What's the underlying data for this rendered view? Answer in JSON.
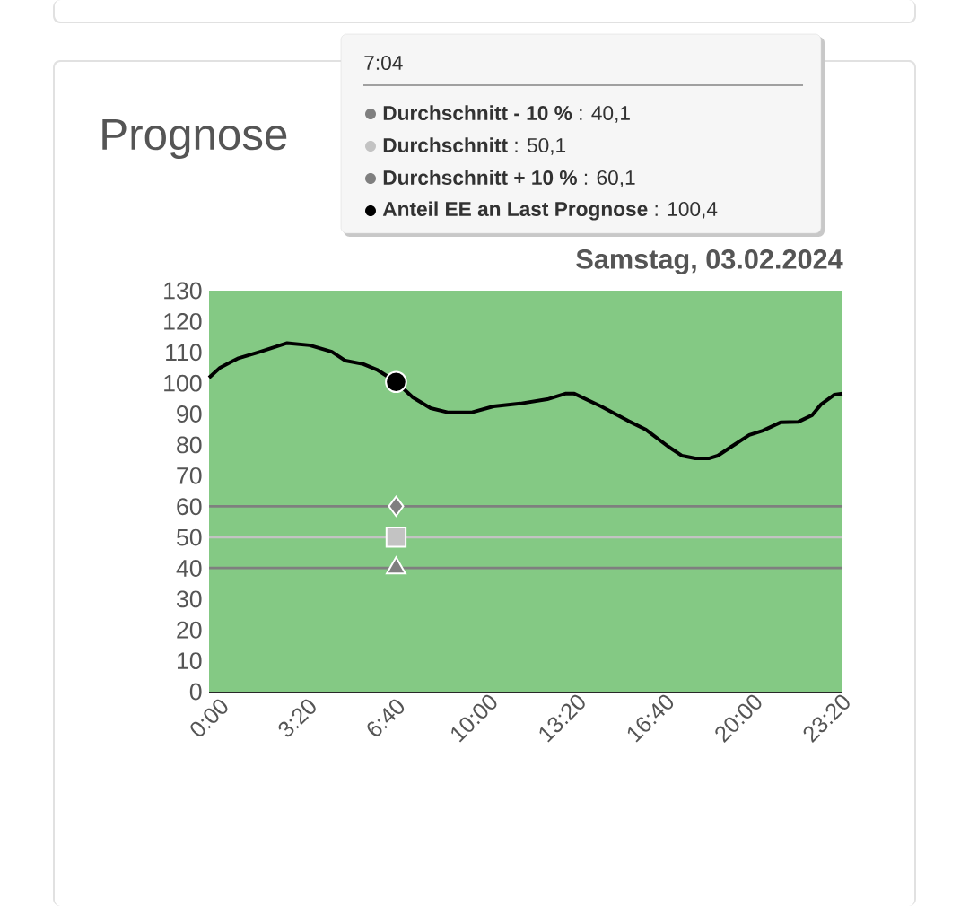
{
  "chart_data": {
    "type": "line",
    "title": "Prognose",
    "subtitle": "Samstag, 03.02.2024",
    "xlim": [
      0,
      23.933
    ],
    "ylim": [
      0,
      130
    ],
    "xticks": [
      {
        "value": 0,
        "label": "0:00"
      },
      {
        "value": 3.3333,
        "label": "3:20"
      },
      {
        "value": 6.6667,
        "label": "6:40"
      },
      {
        "value": 10,
        "label": "10:00"
      },
      {
        "value": 13.3333,
        "label": "13:20"
      },
      {
        "value": 16.6667,
        "label": "16:40"
      },
      {
        "value": 20,
        "label": "20:00"
      },
      {
        "value": 23.3333,
        "label": "23:20"
      }
    ],
    "yticks": [
      0,
      10,
      20,
      30,
      40,
      50,
      60,
      70,
      80,
      90,
      100,
      110,
      120,
      130
    ],
    "bands": [
      {
        "axis": "y",
        "from": 0,
        "to": 130,
        "color": "#84c984"
      }
    ],
    "series": [
      {
        "color": "#7f7f7f",
        "x": [
          0,
          23.933
        ],
        "values": [
          40.1,
          40.1
        ]
      },
      {
        "color": "#c3c3c3",
        "x": [
          0,
          23.933
        ],
        "values": [
          50.1,
          50.1
        ]
      },
      {
        "color": "#7f7f7f",
        "x": [
          0,
          23.933
        ],
        "values": [
          60.1,
          60.1
        ]
      },
      {
        "color": "#000000",
        "x": [
          0,
          0.41,
          1.08,
          1.93,
          2.95,
          3.8,
          4.64,
          5.15,
          5.83,
          6.34,
          7.0667,
          7.7,
          8.37,
          9.05,
          9.9,
          10.75,
          11.76,
          12.78,
          13.46,
          13.8,
          14.81,
          15.83,
          16.51,
          17.36,
          17.86,
          18.37,
          18.88,
          19.22,
          19.73,
          20.41,
          20.92,
          21.59,
          22.27,
          22.78,
          23.12,
          23.63,
          23.93
        ],
        "values": [
          101.8,
          105,
          108,
          110.2,
          113,
          112.3,
          110.2,
          107.3,
          106.2,
          104.4,
          100.4,
          95.4,
          91.9,
          90.5,
          90.5,
          92.5,
          93.4,
          94.8,
          96.6,
          96.6,
          92.5,
          87.8,
          84.9,
          79.4,
          76.5,
          75.6,
          75.6,
          76.5,
          79.4,
          83.2,
          84.6,
          87.3,
          87.5,
          89.6,
          93.1,
          96.3,
          96.6
        ]
      },
      {
        "type": "scatter",
        "marker": "triangle",
        "color": "#7f7f7f",
        "x": [
          7.0667
        ],
        "values": [
          40.1
        ]
      },
      {
        "type": "scatter",
        "marker": "square",
        "color": "#c3c3c3",
        "x": [
          7.0667
        ],
        "values": [
          50.1
        ]
      },
      {
        "type": "scatter",
        "marker": "diamond",
        "color": "#7f7f7f",
        "x": [
          7.0667
        ],
        "values": [
          60.1
        ]
      },
      {
        "type": "scatter",
        "marker": "circle",
        "color": "#000000",
        "x": [
          7.0667
        ],
        "values": [
          100.4
        ]
      }
    ],
    "annotations": [
      "7:04",
      "**Durchschnitt - 10 %** : 40,1",
      "**Durchschnitt** : 50,1",
      "**Durchschnitt + 10 %** : 60,1",
      "**Anteil EE an Last Prognose** : 100,4"
    ]
  }
}
